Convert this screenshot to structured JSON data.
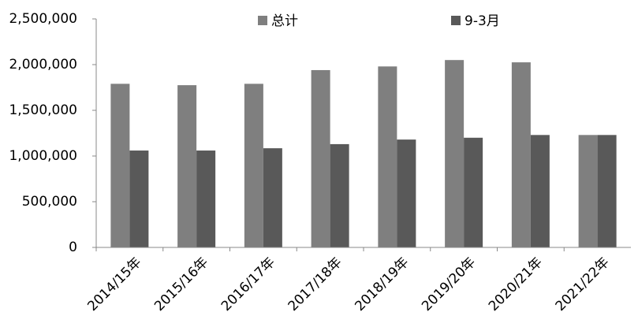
{
  "chart_data": {
    "type": "bar",
    "categories": [
      "2014/15年",
      "2015/16年",
      "2016/17年",
      "2017/18年",
      "2018/19年",
      "2019/20年",
      "2020/21年",
      "2021/22年"
    ],
    "series": [
      {
        "name": "总计",
        "color": "#7f7f7f",
        "values": [
          1790000,
          1775000,
          1790000,
          1940000,
          1980000,
          2050000,
          2025000,
          1230000
        ]
      },
      {
        "name": "9-3月",
        "color": "#595959",
        "values": [
          1060000,
          1060000,
          1085000,
          1130000,
          1180000,
          1200000,
          1230000,
          1230000
        ]
      }
    ],
    "ylim": [
      0,
      2500000
    ],
    "yticks": [
      0,
      {
        "value": 500000,
        "label": "500,000"
      },
      {
        "value": 1000000,
        "label": "1,000,000"
      },
      {
        "value": 1500000,
        "label": "1,500,000"
      },
      {
        "value": 2000000,
        "label": "2,000,000"
      },
      {
        "value": 2500000,
        "label": "2,500,000"
      }
    ],
    "grid": false,
    "legend": "top"
  }
}
